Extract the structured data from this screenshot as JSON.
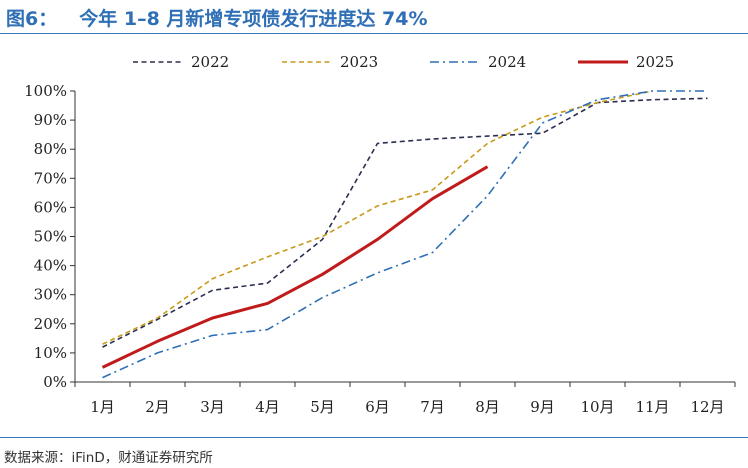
{
  "header": {
    "figure_label": "图6：",
    "title_text": "今年 1–8 月新增专项债发行进度达 74%"
  },
  "footer": {
    "source": "数据来源：iFinD，财通证券研究所"
  },
  "chart_data": {
    "type": "line",
    "categories": [
      "1月",
      "2月",
      "3月",
      "4月",
      "5月",
      "6月",
      "7月",
      "8月",
      "9月",
      "10月",
      "11月",
      "12月"
    ],
    "ylim": [
      0,
      100
    ],
    "yticks": [
      0,
      10,
      20,
      30,
      40,
      50,
      60,
      70,
      80,
      90,
      100
    ],
    "ytick_labels": [
      "0%",
      "10%",
      "20%",
      "30%",
      "40%",
      "50%",
      "60%",
      "70%",
      "80%",
      "90%",
      "100%"
    ],
    "legend_position": "top",
    "grid": false,
    "series": [
      {
        "name": "2022",
        "color": "#2b2f4f",
        "style": "dashed",
        "values": [
          12,
          21.5,
          31.5,
          34,
          49,
          82,
          83.5,
          84.5,
          85.5,
          96,
          97,
          97.5
        ]
      },
      {
        "name": "2023",
        "color": "#c89a18",
        "style": "dashed",
        "values": [
          13,
          22,
          35.5,
          43,
          50,
          60.5,
          66,
          82,
          91,
          96,
          100,
          null
        ]
      },
      {
        "name": "2024",
        "color": "#2f6fb5",
        "style": "dashdot",
        "values": [
          1.5,
          10,
          16,
          18,
          29,
          37.5,
          44.5,
          64,
          89,
          97,
          100,
          100
        ]
      },
      {
        "name": "2025",
        "color": "#c01a1a",
        "style": "solid",
        "values": [
          5,
          14,
          22,
          27,
          37,
          49,
          63,
          74,
          null,
          null,
          null,
          null
        ]
      }
    ]
  }
}
